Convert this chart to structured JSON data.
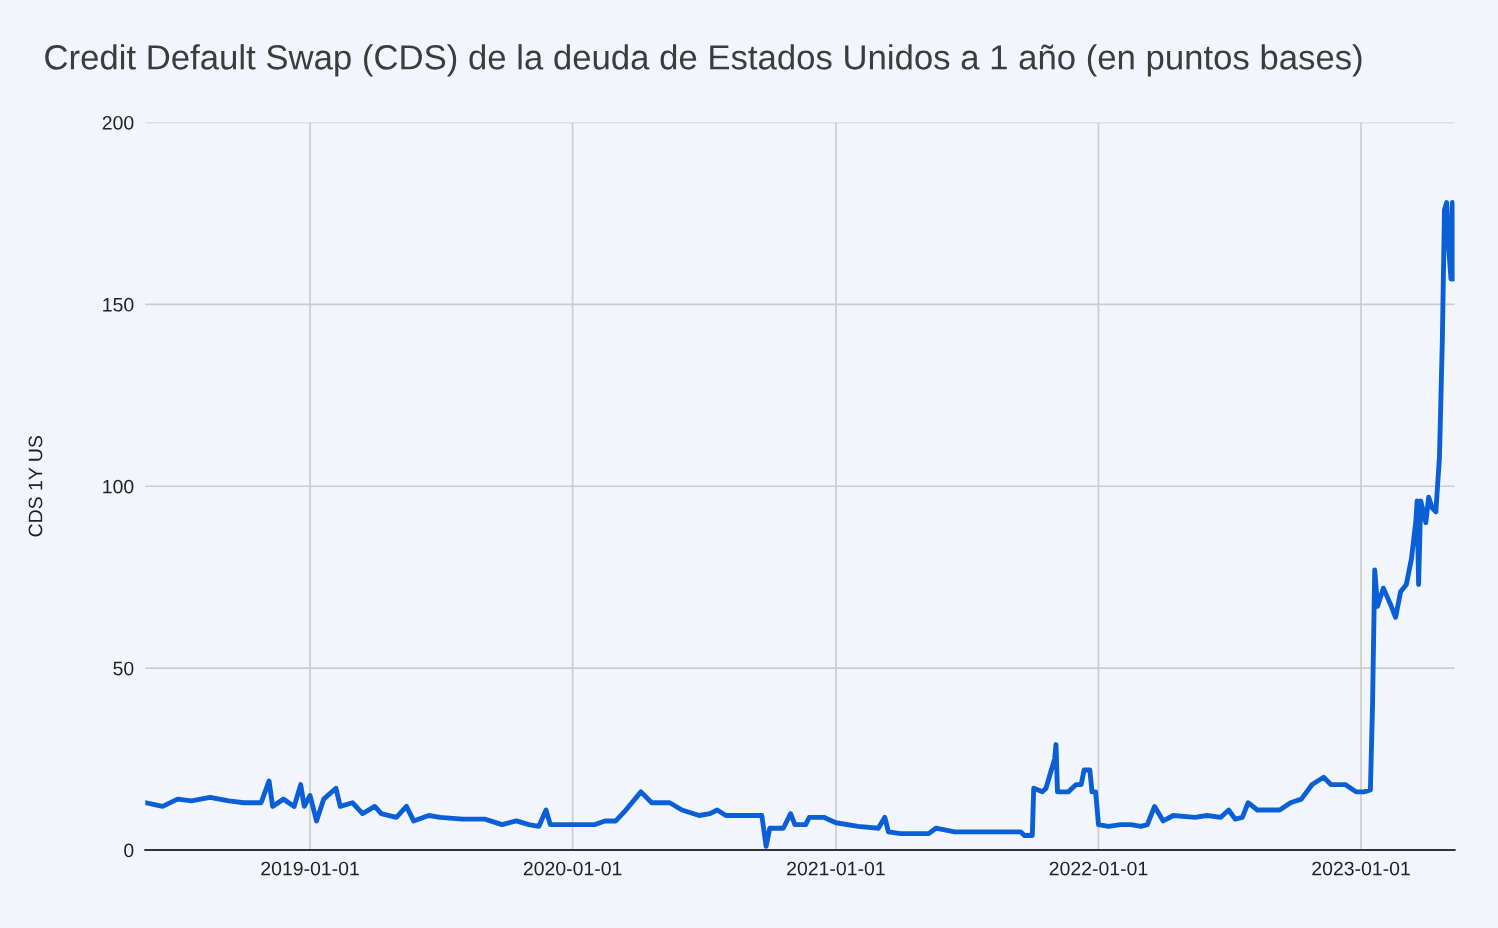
{
  "chart_data": {
    "type": "line",
    "title": "Credit Default Swap (CDS) de la deuda de Estados Unidos a 1 año (en puntos bases)",
    "ylabel": "CDS 1Y US",
    "x": [
      "2018-05-18",
      "2018-06-10",
      "2018-07-01",
      "2018-07-20",
      "2018-08-15",
      "2018-09-10",
      "2018-10-01",
      "2018-10-25",
      "2018-11-05",
      "2018-11-10",
      "2018-11-25",
      "2018-12-10",
      "2018-12-19",
      "2018-12-24",
      "2019-01-01",
      "2019-01-10",
      "2019-01-20",
      "2019-02-06",
      "2019-02-12",
      "2019-03-01",
      "2019-03-15",
      "2019-04-01",
      "2019-04-10",
      "2019-05-01",
      "2019-05-15",
      "2019-05-25",
      "2019-06-15",
      "2019-07-01",
      "2019-08-01",
      "2019-09-01",
      "2019-09-25",
      "2019-10-15",
      "2019-11-01",
      "2019-11-15",
      "2019-11-25",
      "2019-12-01",
      "2020-01-01",
      "2020-02-01",
      "2020-02-15",
      "2020-03-01",
      "2020-03-15",
      "2020-04-05",
      "2020-04-20",
      "2020-05-15",
      "2020-06-01",
      "2020-06-25",
      "2020-07-10",
      "2020-07-20",
      "2020-08-01",
      "2020-09-20",
      "2020-09-26",
      "2020-10-01",
      "2020-10-20",
      "2020-10-30",
      "2020-11-05",
      "2020-11-20",
      "2020-11-25",
      "2020-12-15",
      "2021-01-01",
      "2021-02-01",
      "2021-03-01",
      "2021-03-10",
      "2021-03-15",
      "2021-04-01",
      "2021-05-10",
      "2021-05-20",
      "2021-06-15",
      "2021-08-01",
      "2021-09-15",
      "2021-09-20",
      "2021-10-01",
      "2021-10-03",
      "2021-10-15",
      "2021-10-20",
      "2021-11-01",
      "2021-11-03",
      "2021-11-05",
      "2021-11-20",
      "2021-12-01",
      "2021-12-08",
      "2021-12-12",
      "2021-12-20",
      "2021-12-23",
      "2021-12-28",
      "2022-01-01",
      "2022-01-15",
      "2022-02-01",
      "2022-02-15",
      "2022-03-01",
      "2022-03-10",
      "2022-03-20",
      "2022-04-01",
      "2022-04-15",
      "2022-05-15",
      "2022-06-01",
      "2022-06-20",
      "2022-07-01",
      "2022-07-10",
      "2022-07-20",
      "2022-07-28",
      "2022-08-10",
      "2022-09-10",
      "2022-09-25",
      "2022-10-10",
      "2022-10-25",
      "2022-11-10",
      "2022-11-20",
      "2022-12-10",
      "2022-12-25",
      "2023-01-05",
      "2023-01-14",
      "2023-01-17",
      "2023-01-20",
      "2023-01-24",
      "2023-02-01",
      "2023-02-10",
      "2023-02-18",
      "2023-02-25",
      "2023-03-05",
      "2023-03-12",
      "2023-03-18",
      "2023-03-20",
      "2023-03-22",
      "2023-03-25",
      "2023-04-01",
      "2023-04-05",
      "2023-04-10",
      "2023-04-15",
      "2023-04-20",
      "2023-04-24",
      "2023-04-27",
      "2023-04-30",
      "2023-05-03",
      "2023-05-06",
      "2023-05-08",
      "2023-05-10"
    ],
    "series": [
      {
        "color": "#0a5fd6",
        "values": [
          13,
          12,
          14,
          13.5,
          14.5,
          13.5,
          13,
          13,
          19,
          12,
          14,
          12,
          18,
          12,
          15,
          8,
          14,
          17,
          12,
          13,
          10,
          12,
          10,
          9,
          12,
          8,
          9.5,
          9,
          8.5,
          8.5,
          7,
          8,
          7,
          6.5,
          11,
          7,
          7,
          7,
          8,
          8,
          11,
          16,
          13,
          13,
          11,
          9.5,
          10,
          11,
          9.5,
          9.5,
          1,
          6,
          6,
          10,
          7,
          7,
          9,
          9,
          7.5,
          6.5,
          6,
          9,
          5,
          4.5,
          4.5,
          6,
          5,
          5,
          5,
          4,
          4,
          17,
          16,
          17,
          25,
          29,
          16,
          16,
          18,
          18,
          22,
          22,
          16,
          16,
          7,
          6.5,
          7,
          7,
          6.5,
          7,
          12,
          8,
          9.5,
          9,
          9.5,
          9,
          11,
          8.5,
          9,
          13,
          11,
          11,
          13,
          14,
          18,
          20,
          18,
          18,
          16,
          16,
          16.5,
          40,
          77,
          67,
          72,
          68,
          64,
          71,
          73,
          80,
          90,
          96,
          73,
          96,
          90,
          97,
          94,
          93,
          108,
          140,
          176,
          178,
          165,
          157,
          178,
          157
        ]
      }
    ],
    "xlim": [
      "2018-05-17",
      "2023-05-11"
    ],
    "xticks": [
      "2019-01-01",
      "2020-01-01",
      "2021-01-01",
      "2022-01-01",
      "2023-01-01"
    ],
    "ylim": [
      0,
      200
    ],
    "yticks": [
      0,
      50,
      100,
      150,
      200
    ],
    "grid": true,
    "legend": false
  }
}
